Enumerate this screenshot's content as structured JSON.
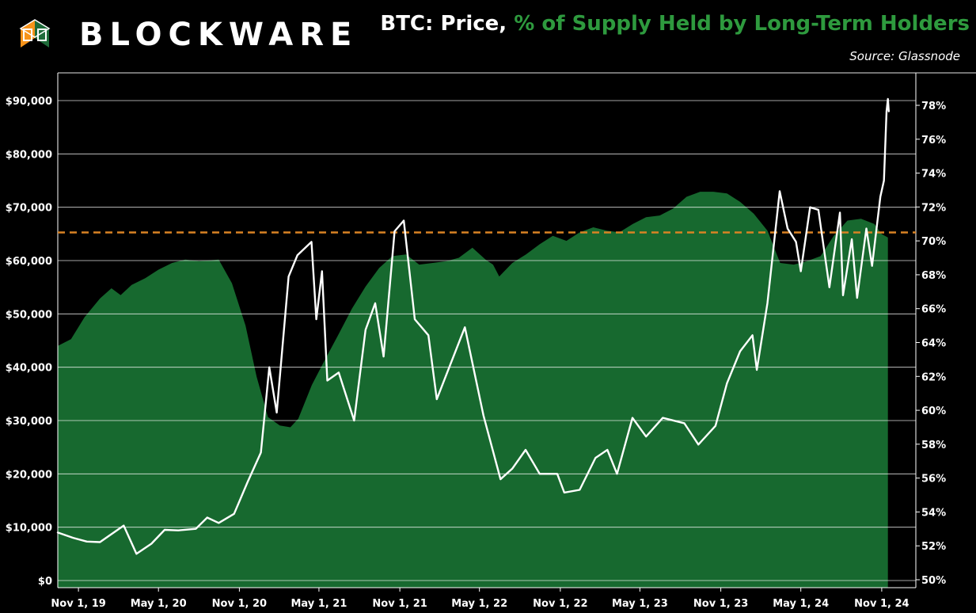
{
  "brand": {
    "name": "BLOCKWARE",
    "logo_icon": "blockware-cube-icon",
    "logo_colors": [
      "#f7931a",
      "#1f6b3a"
    ]
  },
  "title": {
    "part1": "BTC: Price, ",
    "part2": "% of Supply Held by Long-Term Holders"
  },
  "source": "Source: Glassnode",
  "colors": {
    "area": "#17692f",
    "price": "#ffffff",
    "reference": "#d98324",
    "grid": "#ffffff",
    "background": "#000000",
    "title_accent": "#2e9a3e"
  },
  "chart_data": {
    "type": "line",
    "x_axis": {
      "type": "date",
      "range": [
        "2019-09-15",
        "2024-11-30"
      ],
      "ticks": [
        {
          "date": "2019-11-01",
          "label": "Nov 1, 19"
        },
        {
          "date": "2020-05-01",
          "label": "May 1, 20"
        },
        {
          "date": "2020-11-01",
          "label": "Nov 1, 20"
        },
        {
          "date": "2021-05-01",
          "label": "May 1, 21"
        },
        {
          "date": "2021-11-01",
          "label": "Nov 1, 21"
        },
        {
          "date": "2022-05-01",
          "label": "May 1, 22"
        },
        {
          "date": "2022-11-01",
          "label": "Nov 1, 22"
        },
        {
          "date": "2023-05-01",
          "label": "May 1, 23"
        },
        {
          "date": "2023-11-01",
          "label": "Nov 1, 23"
        },
        {
          "date": "2024-05-01",
          "label": "May 1, 24"
        },
        {
          "date": "2024-11-01",
          "label": "Nov 1, 24"
        }
      ]
    },
    "y_left": {
      "min": 0,
      "max": 90000,
      "ticks": [
        0,
        10000,
        20000,
        30000,
        40000,
        50000,
        60000,
        70000,
        80000,
        90000
      ],
      "tick_labels": [
        "$0",
        "$10,000",
        "$20,000",
        "$30,000",
        "$40,000",
        "$50,000",
        "$60,000",
        "$70,000",
        "$80,000",
        "$90,000"
      ]
    },
    "y_right": {
      "min": 50,
      "max": 78,
      "ticks": [
        50,
        52,
        54,
        56,
        58,
        60,
        62,
        64,
        66,
        68,
        70,
        72,
        74,
        76,
        78
      ],
      "tick_labels": [
        "50%",
        "52%",
        "54%",
        "56%",
        "58%",
        "60%",
        "62%",
        "64%",
        "66%",
        "68%",
        "70%",
        "72%",
        "74%",
        "76%",
        "78%"
      ]
    },
    "grid": true,
    "reference_line": {
      "axis": "right",
      "value": 70.5,
      "style": "dashed"
    },
    "series": [
      {
        "kind": "area",
        "axis": "right",
        "points": [
          [
            "2019-09-15",
            63.8
          ],
          [
            "2019-10-15",
            64.2
          ],
          [
            "2019-11-15",
            65.5
          ],
          [
            "2019-12-20",
            66.6
          ],
          [
            "2020-01-15",
            67.2
          ],
          [
            "2020-02-05",
            66.8
          ],
          [
            "2020-03-01",
            67.4
          ],
          [
            "2020-04-01",
            67.8
          ],
          [
            "2020-05-01",
            68.3
          ],
          [
            "2020-06-01",
            68.7
          ],
          [
            "2020-07-01",
            68.9
          ],
          [
            "2020-08-01",
            68.8
          ],
          [
            "2020-09-15",
            68.9
          ],
          [
            "2020-10-15",
            67.5
          ],
          [
            "2020-11-15",
            65.0
          ],
          [
            "2020-12-10",
            62.0
          ],
          [
            "2021-01-05",
            59.6
          ],
          [
            "2021-02-01",
            59.1
          ],
          [
            "2021-02-25",
            59.0
          ],
          [
            "2021-03-15",
            59.5
          ],
          [
            "2021-04-15",
            61.5
          ],
          [
            "2021-05-15",
            63.0
          ],
          [
            "2021-06-15",
            64.5
          ],
          [
            "2021-07-15",
            66.0
          ],
          [
            "2021-08-15",
            67.3
          ],
          [
            "2021-09-15",
            68.4
          ],
          [
            "2021-10-15",
            69.1
          ],
          [
            "2021-11-15",
            69.2
          ],
          [
            "2021-12-15",
            68.6
          ],
          [
            "2022-01-15",
            68.7
          ],
          [
            "2022-02-15",
            68.8
          ],
          [
            "2022-03-15",
            69.0
          ],
          [
            "2022-04-15",
            69.6
          ],
          [
            "2022-05-15",
            68.9
          ],
          [
            "2022-06-01",
            68.6
          ],
          [
            "2022-06-15",
            67.9
          ],
          [
            "2022-07-15",
            68.7
          ],
          [
            "2022-08-15",
            69.2
          ],
          [
            "2022-09-15",
            69.8
          ],
          [
            "2022-10-15",
            70.3
          ],
          [
            "2022-11-15",
            70.0
          ],
          [
            "2022-12-15",
            70.5
          ],
          [
            "2023-01-15",
            70.8
          ],
          [
            "2023-02-15",
            70.6
          ],
          [
            "2023-03-15",
            70.5
          ],
          [
            "2023-04-15",
            71.0
          ],
          [
            "2023-05-15",
            71.4
          ],
          [
            "2023-06-15",
            71.5
          ],
          [
            "2023-07-15",
            71.9
          ],
          [
            "2023-08-15",
            72.6
          ],
          [
            "2023-09-15",
            72.9
          ],
          [
            "2023-10-15",
            72.9
          ],
          [
            "2023-11-15",
            72.8
          ],
          [
            "2023-12-15",
            72.3
          ],
          [
            "2024-01-15",
            71.6
          ],
          [
            "2024-02-15",
            70.6
          ],
          [
            "2024-03-15",
            68.7
          ],
          [
            "2024-04-15",
            68.6
          ],
          [
            "2024-05-15",
            68.8
          ],
          [
            "2024-06-15",
            69.1
          ],
          [
            "2024-07-15",
            70.3
          ],
          [
            "2024-08-15",
            71.2
          ],
          [
            "2024-09-15",
            71.3
          ],
          [
            "2024-10-15",
            71.0
          ],
          [
            "2024-11-01",
            70.4
          ],
          [
            "2024-11-15",
            70.2
          ]
        ]
      },
      {
        "kind": "line",
        "axis": "left",
        "points": [
          [
            "2019-09-15",
            9000
          ],
          [
            "2019-10-20",
            8000
          ],
          [
            "2019-11-20",
            7300
          ],
          [
            "2019-12-20",
            7200
          ],
          [
            "2020-02-12",
            10300
          ],
          [
            "2020-03-12",
            5000
          ],
          [
            "2020-04-15",
            6900
          ],
          [
            "2020-05-15",
            9500
          ],
          [
            "2020-06-15",
            9400
          ],
          [
            "2020-07-25",
            9700
          ],
          [
            "2020-08-20",
            11800
          ],
          [
            "2020-09-15",
            10800
          ],
          [
            "2020-10-20",
            12500
          ],
          [
            "2020-11-20",
            18500
          ],
          [
            "2020-12-20",
            24000
          ],
          [
            "2021-01-08",
            40000
          ],
          [
            "2021-01-25",
            31500
          ],
          [
            "2021-02-21",
            57000
          ],
          [
            "2021-03-13",
            61000
          ],
          [
            "2021-04-14",
            63500
          ],
          [
            "2021-04-25",
            49000
          ],
          [
            "2021-05-08",
            58000
          ],
          [
            "2021-05-20",
            37500
          ],
          [
            "2021-06-15",
            39000
          ],
          [
            "2021-07-20",
            30000
          ],
          [
            "2021-08-15",
            47000
          ],
          [
            "2021-09-06",
            52000
          ],
          [
            "2021-09-25",
            42000
          ],
          [
            "2021-10-20",
            65500
          ],
          [
            "2021-11-10",
            67500
          ],
          [
            "2021-12-05",
            49000
          ],
          [
            "2022-01-05",
            46000
          ],
          [
            "2022-01-24",
            34000
          ],
          [
            "2022-03-29",
            47500
          ],
          [
            "2022-05-10",
            31000
          ],
          [
            "2022-06-18",
            19000
          ],
          [
            "2022-07-15",
            21000
          ],
          [
            "2022-08-14",
            24500
          ],
          [
            "2022-09-15",
            20000
          ],
          [
            "2022-10-25",
            20000
          ],
          [
            "2022-11-10",
            16500
          ],
          [
            "2022-12-15",
            17000
          ],
          [
            "2023-01-20",
            23000
          ],
          [
            "2023-02-16",
            24500
          ],
          [
            "2023-03-10",
            20000
          ],
          [
            "2023-04-14",
            30500
          ],
          [
            "2023-05-15",
            27000
          ],
          [
            "2023-06-22",
            30500
          ],
          [
            "2023-08-10",
            29500
          ],
          [
            "2023-09-11",
            25500
          ],
          [
            "2023-10-20",
            29000
          ],
          [
            "2023-11-15",
            37000
          ],
          [
            "2023-12-15",
            43000
          ],
          [
            "2024-01-12",
            46000
          ],
          [
            "2024-01-22",
            39500
          ],
          [
            "2024-02-15",
            52000
          ],
          [
            "2024-03-14",
            73000
          ],
          [
            "2024-04-01",
            66000
          ],
          [
            "2024-04-20",
            63500
          ],
          [
            "2024-05-01",
            58000
          ],
          [
            "2024-05-22",
            70000
          ],
          [
            "2024-06-10",
            69500
          ],
          [
            "2024-07-05",
            55000
          ],
          [
            "2024-07-29",
            69000
          ],
          [
            "2024-08-05",
            53500
          ],
          [
            "2024-08-25",
            64000
          ],
          [
            "2024-09-06",
            53000
          ],
          [
            "2024-09-27",
            66000
          ],
          [
            "2024-10-10",
            59000
          ],
          [
            "2024-10-29",
            72000
          ],
          [
            "2024-11-06",
            75000
          ],
          [
            "2024-11-12",
            88000
          ],
          [
            "2024-11-15",
            90300
          ],
          [
            "2024-11-17",
            88000
          ]
        ]
      }
    ]
  }
}
